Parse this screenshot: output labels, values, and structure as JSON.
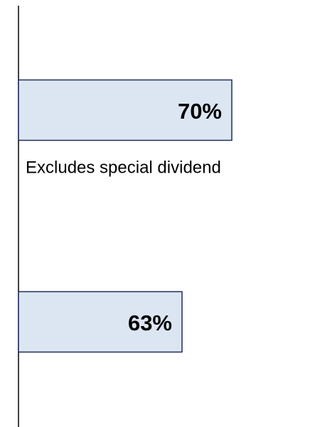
{
  "chart_data": {
    "type": "bar",
    "orientation": "horizontal",
    "categories": [
      null,
      null
    ],
    "values": [
      70,
      63
    ],
    "value_labels": [
      "70%",
      "63%"
    ],
    "color": "#dce6f2",
    "edge_color": "#1f2d5a",
    "xlim": [
      40,
      80
    ],
    "annotation": "Excludes special dividend"
  }
}
